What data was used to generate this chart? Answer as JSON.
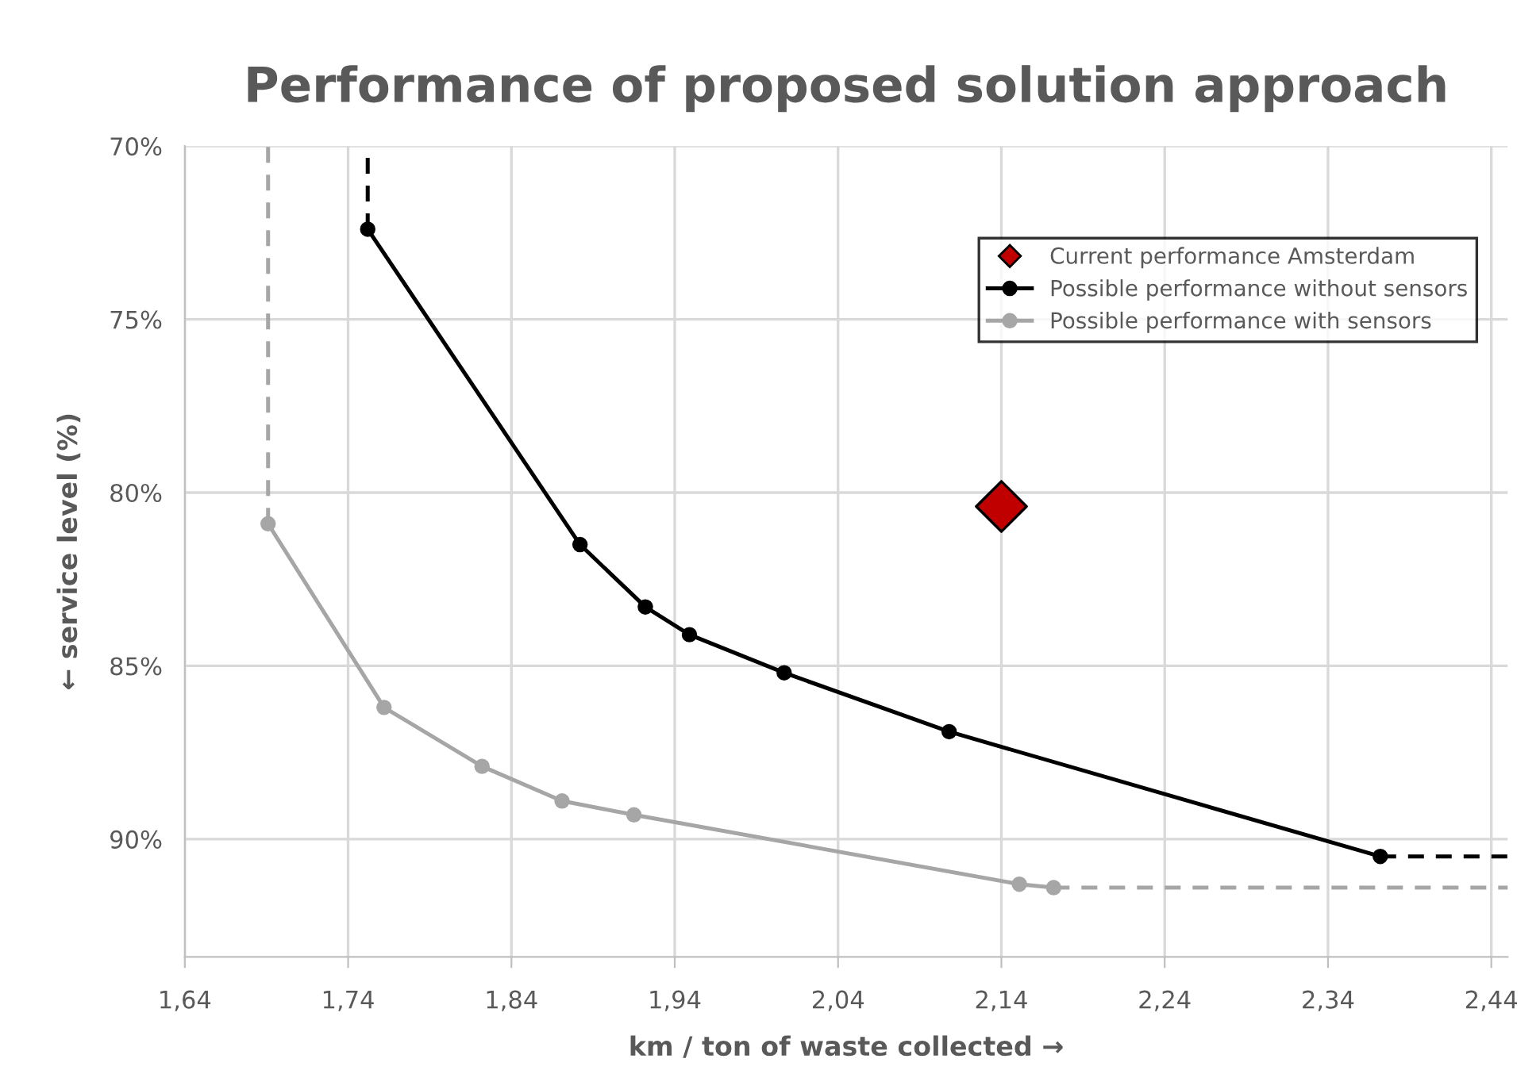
{
  "chart_data": {
    "type": "line",
    "title": "Performance of proposed solution approach",
    "xlabel": "km / ton of waste collected →",
    "ylabel": "← service level (%)",
    "xlim": [
      1.64,
      2.45
    ],
    "ylim": [
      93.4,
      70
    ],
    "xticks": [
      {
        "value": 1.64,
        "label": "1,64"
      },
      {
        "value": 1.74,
        "label": "1,74"
      },
      {
        "value": 1.84,
        "label": "1,84"
      },
      {
        "value": 1.94,
        "label": "1,94"
      },
      {
        "value": 2.04,
        "label": "2,04"
      },
      {
        "value": 2.14,
        "label": "2,14"
      },
      {
        "value": 2.24,
        "label": "2,24"
      },
      {
        "value": 2.34,
        "label": "2,34"
      },
      {
        "value": 2.44,
        "label": "2,44"
      }
    ],
    "yticks": [
      {
        "value": 70,
        "label": "70%"
      },
      {
        "value": 75,
        "label": "75%"
      },
      {
        "value": 80,
        "label": "80%"
      },
      {
        "value": 85,
        "label": "85%"
      },
      {
        "value": 90,
        "label": "90%"
      }
    ],
    "grid": true,
    "legend": "top right",
    "series": [
      {
        "name": "Current performance Amsterdam",
        "type": "scatter",
        "marker": "diamond",
        "color": "#c00000",
        "x": [
          2.14
        ],
        "values": [
          80.4
        ]
      },
      {
        "name": "Possible performance without sensors",
        "marker": "circle",
        "line_style": "solid",
        "color": "#000000",
        "x": [
          1.752,
          1.882,
          1.922,
          1.949,
          2.007,
          2.108,
          2.372
        ],
        "values": [
          72.4,
          81.5,
          83.3,
          84.1,
          85.2,
          86.9,
          90.5
        ]
      },
      {
        "name": "Possible performance with sensors",
        "marker": "circle",
        "line_style": "solid",
        "color": "#a6a6a6",
        "x": [
          1.691,
          1.762,
          1.822,
          1.871,
          1.915,
          2.151,
          2.172
        ],
        "values": [
          80.9,
          86.2,
          87.9,
          88.9,
          89.3,
          91.3,
          91.4
        ]
      },
      {
        "marker": "none",
        "line_style": "dashed",
        "color": "#000000",
        "x": [
          1.752,
          1.752
        ],
        "values": [
          72.4,
          70
        ]
      },
      {
        "marker": "none",
        "line_style": "dashed",
        "color": "#000000",
        "x": [
          2.372,
          2.45
        ],
        "values": [
          90.5,
          90.5
        ]
      },
      {
        "marker": "none",
        "line_style": "dashed",
        "color": "#a6a6a6",
        "x": [
          1.691,
          1.691
        ],
        "values": [
          80.9,
          70
        ]
      },
      {
        "marker": "none",
        "line_style": "dashed",
        "color": "#a6a6a6",
        "x": [
          2.172,
          2.45
        ],
        "values": [
          91.4,
          91.4
        ]
      }
    ]
  }
}
